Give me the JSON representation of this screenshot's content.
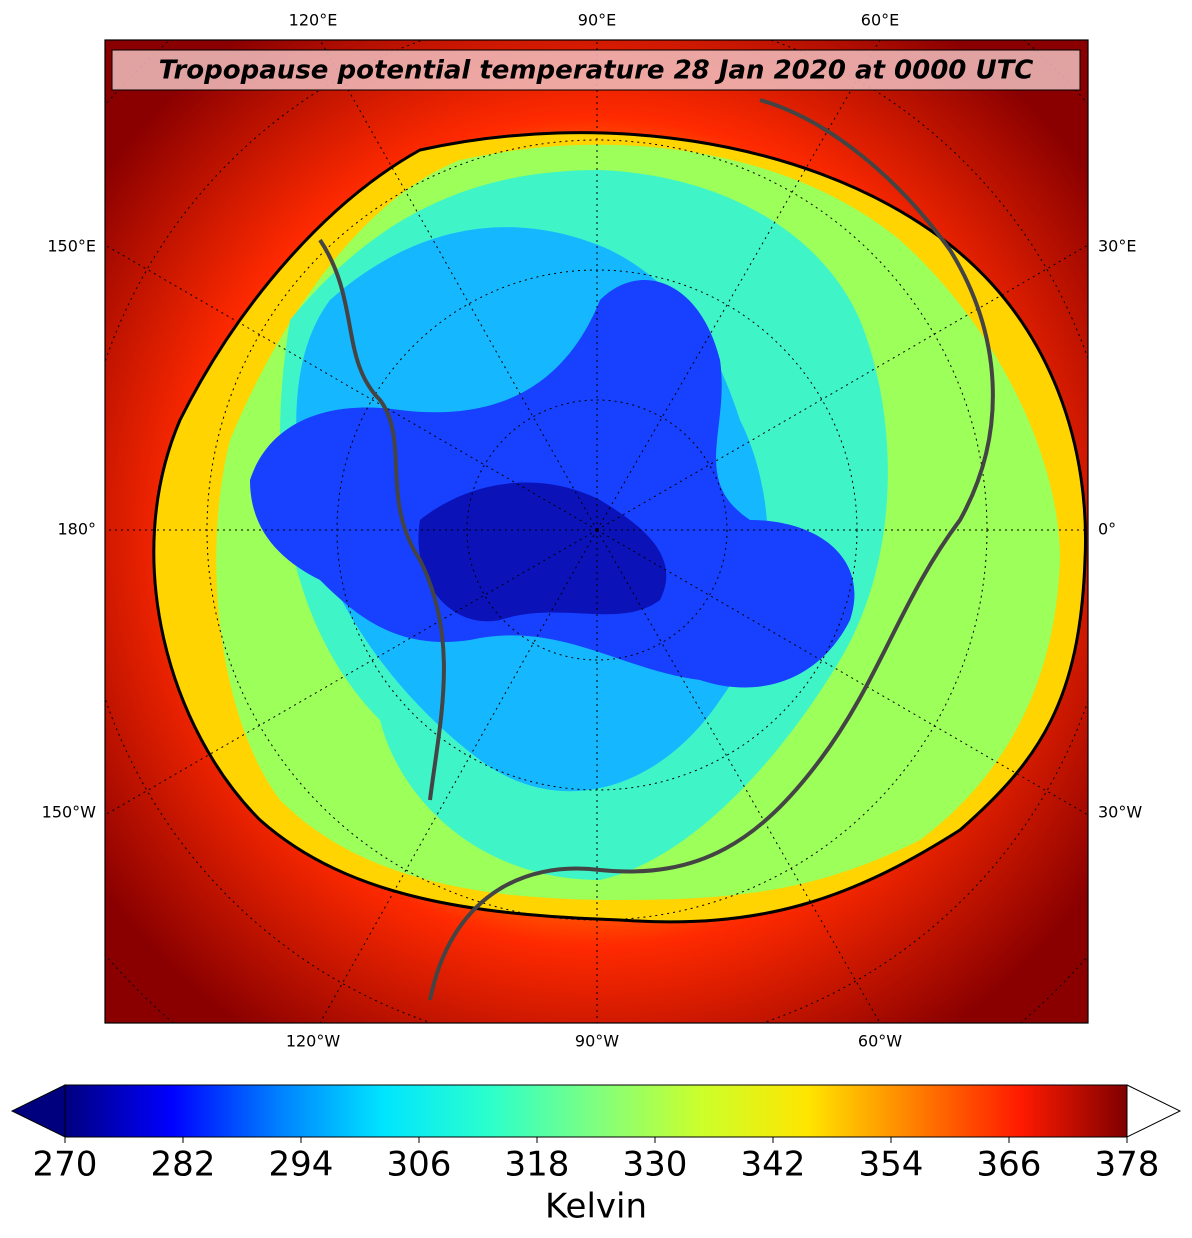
{
  "map": {
    "title": "Tropopause potential temperature 28 Jan 2020 at 0000 UTC",
    "lon_labels": {
      "top": [
        "120°E",
        "90°E",
        "60°E"
      ],
      "left": [
        "150°E",
        "180°",
        "150°W"
      ],
      "right": [
        "30°E",
        "0°",
        "30°W"
      ],
      "bottom": [
        "120°W",
        "90°W",
        "60°W"
      ]
    }
  },
  "colorbar": {
    "label": "Kelvin",
    "lim": [
      270,
      378
    ],
    "ticks": [
      270,
      282,
      294,
      306,
      318,
      330,
      342,
      354,
      366,
      378
    ],
    "colors": [
      "#00007f",
      "#0000ff",
      "#007fff",
      "#00e5ff",
      "#2bffcc",
      "#7fff7f",
      "#ccff2b",
      "#ffe500",
      "#ff7f00",
      "#ff1a00",
      "#7f0000"
    ]
  }
}
